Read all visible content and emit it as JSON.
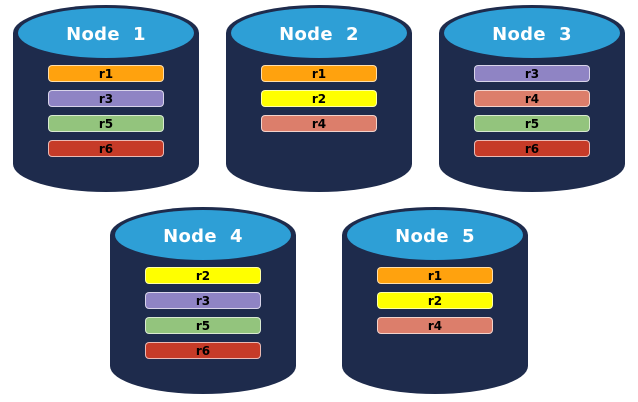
{
  "diagram": {
    "background_color": "#ffffff",
    "cylinder": {
      "body_color": "#1e2b4c",
      "top_color": "#2e9fd6",
      "title_color": "#ffffff"
    },
    "partition_colors": {
      "r1": "#ffa20e",
      "r2": "#ffff00",
      "r3": "#8f84c4",
      "r4": "#dc7e6b",
      "r5": "#93c47d",
      "r6": "#c63b28"
    },
    "nodes": [
      {
        "label": "Node  1",
        "replicas": [
          "r1",
          "r3",
          "r5",
          "r6"
        ]
      },
      {
        "label": "Node  2",
        "replicas": [
          "r1",
          "r2",
          "r4"
        ]
      },
      {
        "label": "Node  3",
        "replicas": [
          "r3",
          "r4",
          "r5",
          "r6"
        ]
      },
      {
        "label": "Node  4",
        "replicas": [
          "r2",
          "r3",
          "r5",
          "r6"
        ]
      },
      {
        "label": "Node  5",
        "replicas": [
          "r1",
          "r2",
          "r4"
        ]
      }
    ]
  }
}
